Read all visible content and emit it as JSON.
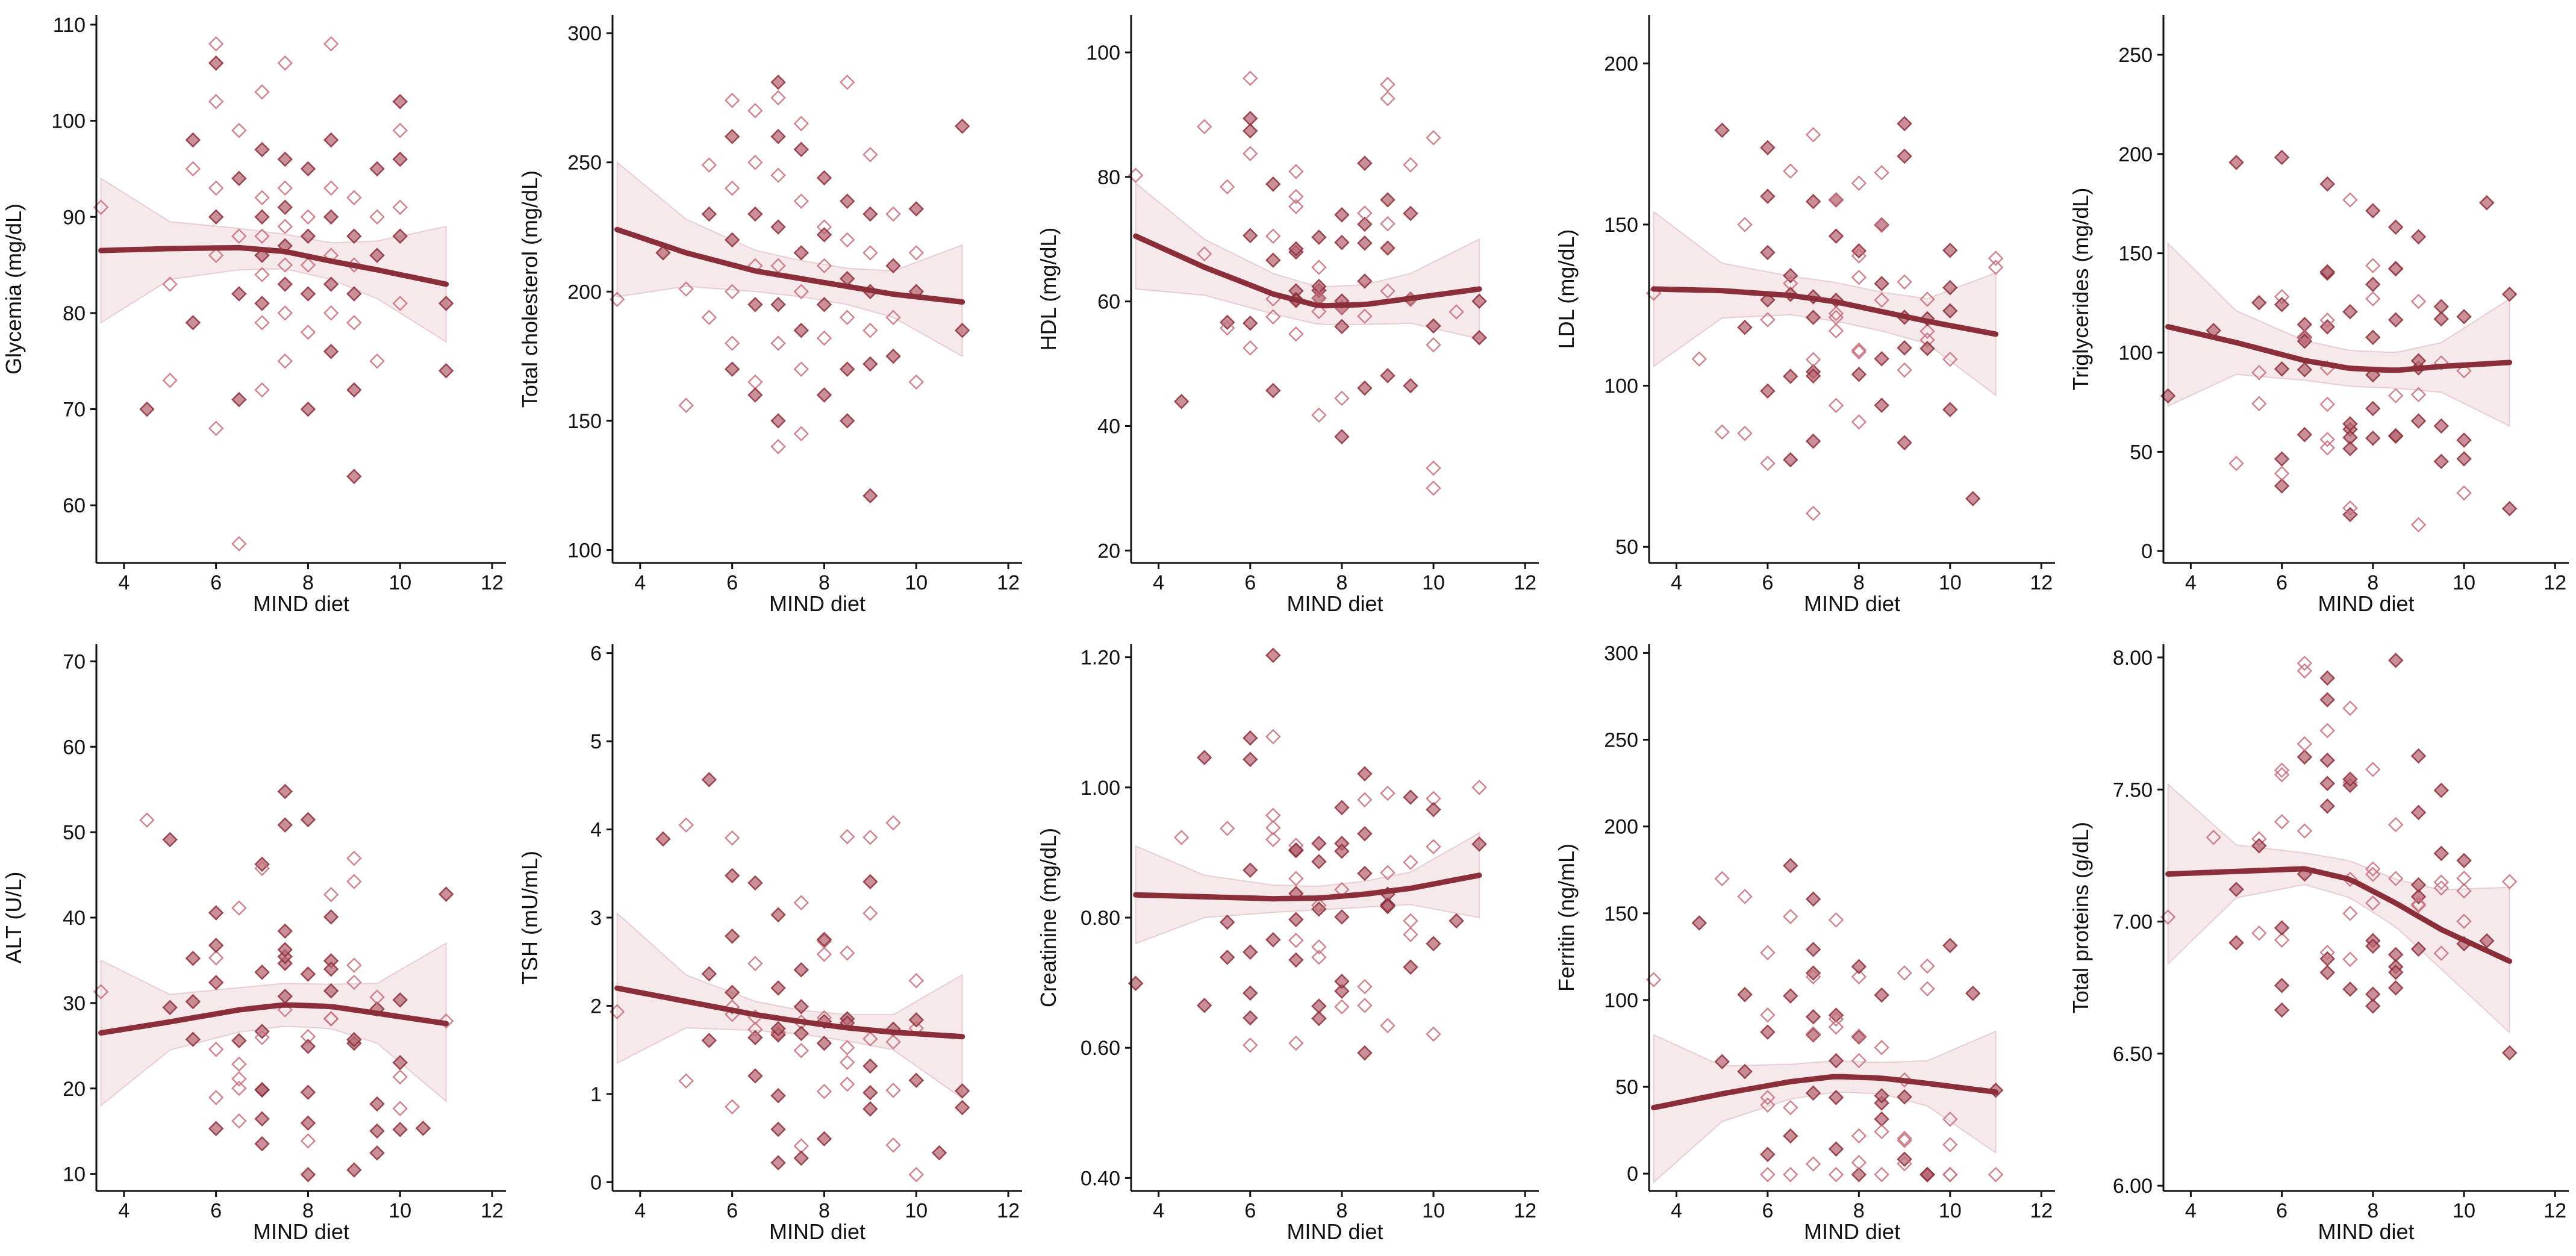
{
  "chart_data": [
    {
      "type": "scatter",
      "xlabel": "MIND diet",
      "ylabel": "Glycemia (mg/dL)",
      "xticks": [
        4,
        6,
        8,
        10,
        12
      ],
      "xlim": [
        3.4,
        12.3
      ],
      "yticks": [
        60,
        70,
        80,
        90,
        100,
        110
      ],
      "ytick_labels": [
        "60",
        "70",
        "80",
        "90",
        "100",
        "110"
      ],
      "ylim": [
        54,
        111
      ],
      "fit": {
        "x": [
          3.5,
          5,
          6.5,
          7.5,
          8.5,
          9.5,
          11
        ],
        "y": [
          86.5,
          86.7,
          86.8,
          86.4,
          85.4,
          84.5,
          83.0
        ]
      },
      "ci_upper": [
        94,
        89.5,
        88.8,
        88.2,
        87.3,
        87.5,
        89
      ],
      "ci_lower": [
        79,
        83.5,
        84.5,
        84.6,
        83.5,
        81.5,
        77
      ],
      "points": [
        [
          3.5,
          91,
          0
        ],
        [
          4.5,
          70,
          1
        ],
        [
          5,
          73,
          0
        ],
        [
          5,
          83,
          0
        ],
        [
          5.5,
          79,
          1
        ],
        [
          5.5,
          95,
          0
        ],
        [
          5.5,
          98,
          1
        ],
        [
          6,
          108,
          0
        ],
        [
          6,
          106,
          1
        ],
        [
          6,
          102,
          0
        ],
        [
          6,
          93,
          0
        ],
        [
          6,
          90,
          1
        ],
        [
          6,
          86,
          0
        ],
        [
          6,
          68,
          0
        ],
        [
          6.5,
          99,
          0
        ],
        [
          6.5,
          94,
          1
        ],
        [
          6.5,
          88,
          0
        ],
        [
          6.5,
          82,
          1
        ],
        [
          6.5,
          71,
          1
        ],
        [
          6.5,
          56,
          0
        ],
        [
          7,
          103,
          0
        ],
        [
          7,
          97,
          1
        ],
        [
          7,
          92,
          0
        ],
        [
          7,
          90,
          1
        ],
        [
          7,
          88,
          0
        ],
        [
          7,
          86,
          1
        ],
        [
          7,
          84,
          0
        ],
        [
          7,
          81,
          1
        ],
        [
          7,
          79,
          0
        ],
        [
          7,
          72,
          0
        ],
        [
          7.5,
          106,
          0
        ],
        [
          7.5,
          96,
          1
        ],
        [
          7.5,
          93,
          0
        ],
        [
          7.5,
          91,
          1
        ],
        [
          7.5,
          89,
          0
        ],
        [
          7.5,
          87,
          1
        ],
        [
          7.5,
          85,
          0
        ],
        [
          7.5,
          83,
          1
        ],
        [
          7.5,
          80,
          0
        ],
        [
          7.5,
          75,
          0
        ],
        [
          8,
          95,
          1
        ],
        [
          8,
          90,
          0
        ],
        [
          8,
          88,
          1
        ],
        [
          8,
          85,
          0
        ],
        [
          8,
          82,
          1
        ],
        [
          8,
          78,
          0
        ],
        [
          8,
          70,
          1
        ],
        [
          8.5,
          108,
          0
        ],
        [
          8.5,
          98,
          1
        ],
        [
          8.5,
          93,
          0
        ],
        [
          8.5,
          90,
          1
        ],
        [
          8.5,
          86,
          0
        ],
        [
          8.5,
          83,
          1
        ],
        [
          8.5,
          80,
          0
        ],
        [
          8.5,
          76,
          1
        ],
        [
          9,
          92,
          0
        ],
        [
          9,
          88,
          1
        ],
        [
          9,
          85,
          0
        ],
        [
          9,
          82,
          1
        ],
        [
          9,
          79,
          0
        ],
        [
          9,
          72,
          1
        ],
        [
          9,
          63,
          1
        ],
        [
          9.5,
          95,
          1
        ],
        [
          9.5,
          90,
          0
        ],
        [
          9.5,
          86,
          1
        ],
        [
          9.5,
          75,
          0
        ],
        [
          10,
          102,
          1
        ],
        [
          10,
          99,
          0
        ],
        [
          10,
          96,
          1
        ],
        [
          10,
          91,
          0
        ],
        [
          10,
          88,
          1
        ],
        [
          10,
          81,
          0
        ],
        [
          11,
          81,
          1
        ],
        [
          11,
          74,
          1
        ]
      ]
    },
    {
      "type": "scatter",
      "xlabel": "MIND diet",
      "ylabel": "Total cholesterol (mg/dL)",
      "xticks": [
        4,
        6,
        8,
        10,
        12
      ],
      "xlim": [
        3.4,
        12.3
      ],
      "yticks": [
        100,
        150,
        200,
        250,
        300
      ],
      "ytick_labels": [
        "100",
        "150",
        "200",
        "250",
        "300"
      ],
      "ylim": [
        95,
        307
      ],
      "fit": {
        "x": [
          3.5,
          5,
          6.5,
          7.5,
          8.5,
          9.5,
          11
        ],
        "y": [
          224,
          215,
          208,
          205,
          202,
          199,
          196
        ]
      },
      "ci_upper": [
        250,
        228,
        216,
        212,
        209,
        208,
        218
      ],
      "ci_lower": [
        198,
        202,
        200,
        198,
        195,
        190,
        175
      ],
      "points": [
        [
          3.5,
          197,
          0
        ],
        [
          4.5,
          215,
          1
        ],
        [
          5,
          156,
          0
        ],
        [
          5,
          201,
          0
        ],
        [
          5.5,
          249,
          0
        ],
        [
          5.5,
          230,
          1
        ],
        [
          5.5,
          190,
          0
        ],
        [
          6,
          274,
          0
        ],
        [
          6,
          260,
          1
        ],
        [
          6,
          240,
          0
        ],
        [
          6,
          220,
          1
        ],
        [
          6,
          200,
          0
        ],
        [
          6,
          180,
          0
        ],
        [
          6,
          170,
          1
        ],
        [
          6.5,
          270,
          0
        ],
        [
          6.5,
          250,
          0
        ],
        [
          6.5,
          230,
          1
        ],
        [
          6.5,
          210,
          0
        ],
        [
          6.5,
          195,
          1
        ],
        [
          6.5,
          165,
          0
        ],
        [
          6.5,
          160,
          1
        ],
        [
          7,
          281,
          1
        ],
        [
          7,
          275,
          0
        ],
        [
          7,
          260,
          1
        ],
        [
          7,
          245,
          0
        ],
        [
          7,
          225,
          1
        ],
        [
          7,
          210,
          0
        ],
        [
          7,
          195,
          1
        ],
        [
          7,
          180,
          0
        ],
        [
          7,
          150,
          1
        ],
        [
          7,
          140,
          0
        ],
        [
          7.5,
          265,
          0
        ],
        [
          7.5,
          255,
          1
        ],
        [
          7.5,
          235,
          0
        ],
        [
          7.5,
          215,
          1
        ],
        [
          7.5,
          200,
          0
        ],
        [
          7.5,
          185,
          1
        ],
        [
          7.5,
          170,
          0
        ],
        [
          7.5,
          145,
          0
        ],
        [
          8,
          244,
          1
        ],
        [
          8,
          225,
          0
        ],
        [
          8,
          222,
          1
        ],
        [
          8,
          210,
          0
        ],
        [
          8,
          195,
          1
        ],
        [
          8,
          182,
          0
        ],
        [
          8,
          160,
          1
        ],
        [
          8.5,
          281,
          0
        ],
        [
          8.5,
          235,
          1
        ],
        [
          8.5,
          220,
          0
        ],
        [
          8.5,
          205,
          1
        ],
        [
          8.5,
          190,
          0
        ],
        [
          8.5,
          170,
          1
        ],
        [
          8.5,
          150,
          1
        ],
        [
          9,
          253,
          0
        ],
        [
          9,
          230,
          1
        ],
        [
          9,
          215,
          0
        ],
        [
          9,
          200,
          1
        ],
        [
          9,
          185,
          0
        ],
        [
          9,
          172,
          1
        ],
        [
          9,
          121,
          1
        ],
        [
          9.5,
          230,
          0
        ],
        [
          9.5,
          210,
          1
        ],
        [
          9.5,
          190,
          0
        ],
        [
          9.5,
          175,
          1
        ],
        [
          10,
          232,
          1
        ],
        [
          10,
          215,
          0
        ],
        [
          10,
          200,
          1
        ],
        [
          10,
          165,
          0
        ],
        [
          11,
          264,
          1
        ],
        [
          11,
          185,
          1
        ]
      ]
    },
    {
      "type": "scatter",
      "xlabel": "MIND diet",
      "ylabel": "HDL (mg/dL)",
      "xticks": [
        4,
        6,
        8,
        10,
        12
      ],
      "xlim": [
        3.4,
        12.3
      ],
      "yticks": [
        20,
        40,
        60,
        80,
        100
      ],
      "ytick_labels": [
        "20",
        "40",
        "60",
        "80",
        "100"
      ],
      "ylim": [
        18,
        106
      ],
      "fit": {
        "x": [
          3.5,
          5,
          6.5,
          7.5,
          8.5,
          9.5,
          11
        ],
        "y": [
          70.5,
          65.5,
          61.2,
          59.3,
          59.5,
          60.5,
          62
        ]
      },
      "ci_upper": [
        79,
        70,
        64.5,
        62.3,
        62.7,
        64.5,
        70
      ],
      "ci_lower": [
        62,
        61,
        58,
        56.3,
        56.3,
        56.5,
        54
      ]
    },
    {
      "type": "scatter",
      "xlabel": "MIND diet",
      "ylabel": "LDL (mg/dL)",
      "xticks": [
        4,
        6,
        8,
        10,
        12
      ],
      "xlim": [
        3.4,
        12.3
      ],
      "yticks": [
        50,
        100,
        150,
        200
      ],
      "ytick_labels": [
        "50",
        "100",
        "150",
        "200"
      ],
      "ylim": [
        45,
        215
      ],
      "fit": {
        "x": [
          3.5,
          5,
          6.5,
          7.5,
          8.5,
          9.5,
          11
        ],
        "y": [
          130,
          129.5,
          128,
          126,
          123,
          120,
          116
        ]
      },
      "ci_upper": [
        154,
        138,
        134,
        132,
        129,
        127,
        135
      ],
      "ci_lower": [
        106,
        121,
        122,
        120,
        117,
        113,
        97
      ]
    },
    {
      "type": "scatter",
      "xlabel": "MIND diet",
      "ylabel": "Triglycerides (mg/dL)",
      "xticks": [
        4,
        6,
        8,
        10,
        12
      ],
      "xlim": [
        3.4,
        12.3
      ],
      "yticks": [
        0,
        50,
        100,
        150,
        200,
        250
      ],
      "ytick_labels": [
        "0",
        "50",
        "100",
        "150",
        "200",
        "250"
      ],
      "ylim": [
        -6,
        270
      ],
      "fit": {
        "x": [
          3.5,
          5,
          6.5,
          7.5,
          8.5,
          9.5,
          11
        ],
        "y": [
          113,
          105,
          96,
          92,
          91,
          93,
          95
        ]
      },
      "ci_upper": [
        155,
        121,
        106,
        101,
        100,
        105,
        127
      ],
      "ci_lower": [
        73,
        89,
        86,
        83,
        82,
        80,
        63
      ]
    },
    {
      "type": "scatter",
      "xlabel": "MIND diet",
      "ylabel": "ALT (U/L)",
      "xticks": [
        4,
        6,
        8,
        10,
        12
      ],
      "xlim": [
        3.4,
        12.3
      ],
      "yticks": [
        10,
        20,
        30,
        40,
        50,
        60,
        70
      ],
      "ytick_labels": [
        "10",
        "20",
        "30",
        "40",
        "50",
        "60",
        "70"
      ],
      "ylim": [
        8,
        72
      ],
      "fit": {
        "x": [
          3.5,
          5,
          6.5,
          7.5,
          8.5,
          9.5,
          11
        ],
        "y": [
          26.5,
          27.8,
          29.2,
          29.8,
          29.6,
          28.8,
          27.6
        ]
      },
      "ci_upper": [
        35,
        31,
        31.8,
        32.3,
        32.2,
        32.3,
        37
      ],
      "ci_lower": [
        18,
        24.5,
        26.6,
        27.3,
        27,
        25.3,
        18.5
      ]
    },
    {
      "type": "scatter",
      "xlabel": "MIND diet",
      "ylabel": "TSH (mU/mL)",
      "xticks": [
        4,
        6,
        8,
        10,
        12
      ],
      "xlim": [
        3.4,
        12.3
      ],
      "yticks": [
        0,
        1,
        2,
        3,
        4,
        5,
        6
      ],
      "ytick_labels": [
        "0",
        "1",
        "2",
        "3",
        "4",
        "5",
        "6"
      ],
      "ylim": [
        -0.1,
        6.1
      ],
      "fit": {
        "x": [
          3.5,
          5,
          6.5,
          7.5,
          8.5,
          9.5,
          11
        ],
        "y": [
          2.2,
          2.05,
          1.9,
          1.82,
          1.75,
          1.7,
          1.65
        ]
      },
      "ci_upper": [
        3.05,
        2.35,
        2.05,
        1.95,
        1.9,
        1.9,
        2.35
      ],
      "ci_lower": [
        1.35,
        1.75,
        1.72,
        1.68,
        1.6,
        1.5,
        0.95
      ]
    },
    {
      "type": "scatter",
      "xlabel": "MIND diet",
      "ylabel": "Creatinine (mg/dL)",
      "xticks": [
        4,
        6,
        8,
        10,
        12
      ],
      "xlim": [
        3.4,
        12.3
      ],
      "yticks": [
        0.4,
        0.6,
        0.8,
        1.0,
        1.2
      ],
      "ytick_labels": [
        "0.40",
        "0.60",
        "0.80",
        "1.00",
        "1.20"
      ],
      "ylim": [
        0.38,
        1.22
      ],
      "fit": {
        "x": [
          3.5,
          5,
          6.5,
          7.5,
          8.5,
          9.5,
          11
        ],
        "y": [
          0.835,
          0.832,
          0.829,
          0.83,
          0.836,
          0.845,
          0.865
        ]
      },
      "ci_upper": [
        0.91,
        0.865,
        0.85,
        0.848,
        0.856,
        0.87,
        0.93
      ],
      "ci_lower": [
        0.76,
        0.8,
        0.808,
        0.812,
        0.816,
        0.82,
        0.8
      ]
    },
    {
      "type": "scatter",
      "xlabel": "MIND diet",
      "ylabel": "Ferritin (ng/mL)",
      "xticks": [
        4,
        6,
        8,
        10,
        12
      ],
      "xlim": [
        3.4,
        12.3
      ],
      "yticks": [
        0,
        50,
        100,
        150,
        200,
        250,
        300
      ],
      "ytick_labels": [
        "0",
        "50",
        "100",
        "150",
        "200",
        "250",
        "300"
      ],
      "ylim": [
        -10,
        305
      ],
      "fit": {
        "x": [
          3.5,
          5,
          6.5,
          7.5,
          8.5,
          9.5,
          11
        ],
        "y": [
          38,
          46,
          53,
          56,
          55,
          52,
          47
        ]
      },
      "ci_upper": [
        80,
        62,
        63,
        65,
        64,
        65,
        82
      ],
      "ci_lower": [
        -5,
        30,
        43,
        47,
        46,
        39,
        12
      ]
    },
    {
      "type": "scatter",
      "xlabel": "MIND diet",
      "ylabel": "Total proteins (g/dL)",
      "xticks": [
        4,
        6,
        8,
        10,
        12
      ],
      "xlim": [
        3.4,
        12.3
      ],
      "yticks": [
        6.0,
        6.5,
        7.0,
        7.5,
        8.0
      ],
      "ytick_labels": [
        "6.00",
        "6.50",
        "7.00",
        "7.50",
        "8.00"
      ],
      "ylim": [
        5.98,
        8.05
      ],
      "fit": {
        "x": [
          3.5,
          5,
          6.5,
          7.5,
          8.5,
          9.5,
          11
        ],
        "y": [
          7.18,
          7.19,
          7.2,
          7.16,
          7.07,
          6.97,
          6.85
        ]
      },
      "ci_upper": [
        7.52,
        7.29,
        7.26,
        7.23,
        7.16,
        7.12,
        7.13
      ],
      "ci_lower": [
        6.84,
        7.09,
        7.14,
        7.09,
        6.98,
        6.82,
        6.58
      ]
    }
  ]
}
